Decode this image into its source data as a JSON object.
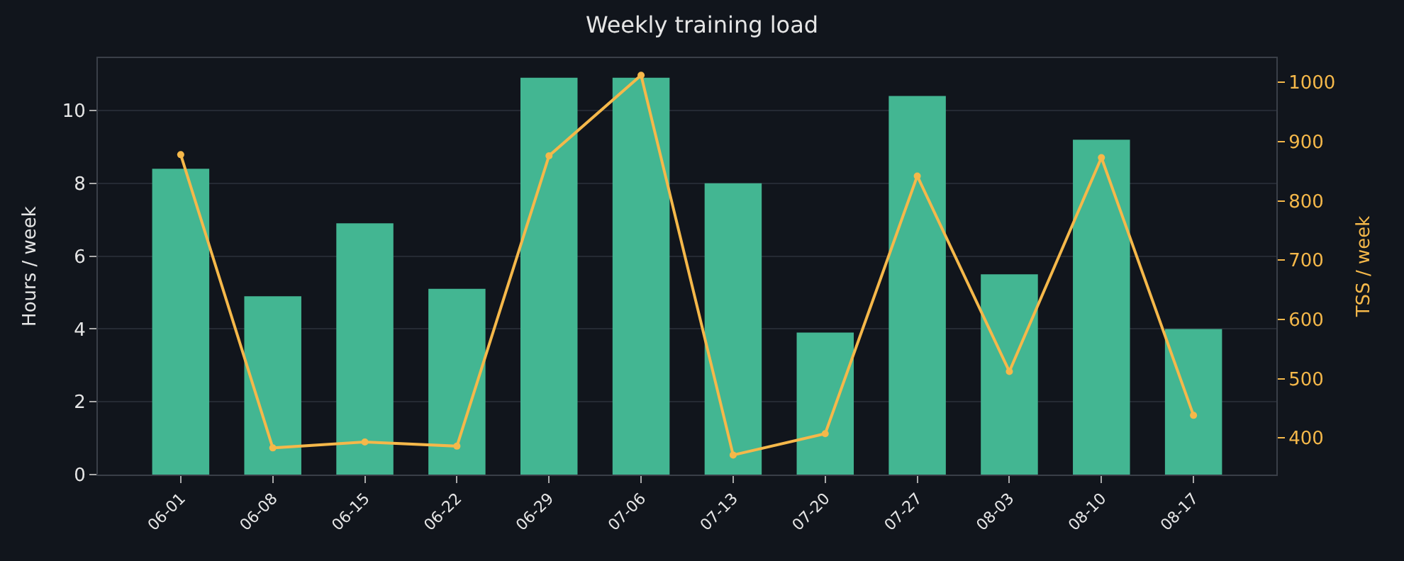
{
  "chart_data": {
    "type": "bar",
    "title": "Weekly training load",
    "ylabel": "Hours / week",
    "y2label": "TSS / week",
    "categories": [
      "06-01",
      "06-08",
      "06-15",
      "06-22",
      "06-29",
      "07-06",
      "07-13",
      "07-20",
      "07-27",
      "08-03",
      "08-10",
      "08-17"
    ],
    "series": [
      {
        "color": "#43b692",
        "values": [
          8.4,
          4.9,
          6.9,
          5.1,
          10.9,
          10.9,
          8.0,
          3.9,
          10.4,
          5.5,
          9.2,
          4.0
        ]
      },
      {
        "type": "line",
        "axis": "y2",
        "color": "#f5b84a",
        "marker": "circle",
        "line_style": "solid",
        "values": [
          878,
          383,
          393,
          386,
          876,
          1012,
          371,
          407,
          842,
          512,
          873,
          438
        ]
      }
    ],
    "ylim": [
      0,
      11.44
    ],
    "yticks": [
      0,
      2,
      4,
      6,
      8,
      10
    ],
    "y2lim": [
      338,
      1041
    ],
    "y2ticks": [
      400,
      500,
      600,
      700,
      800,
      900,
      1000
    ],
    "grid": "y"
  }
}
